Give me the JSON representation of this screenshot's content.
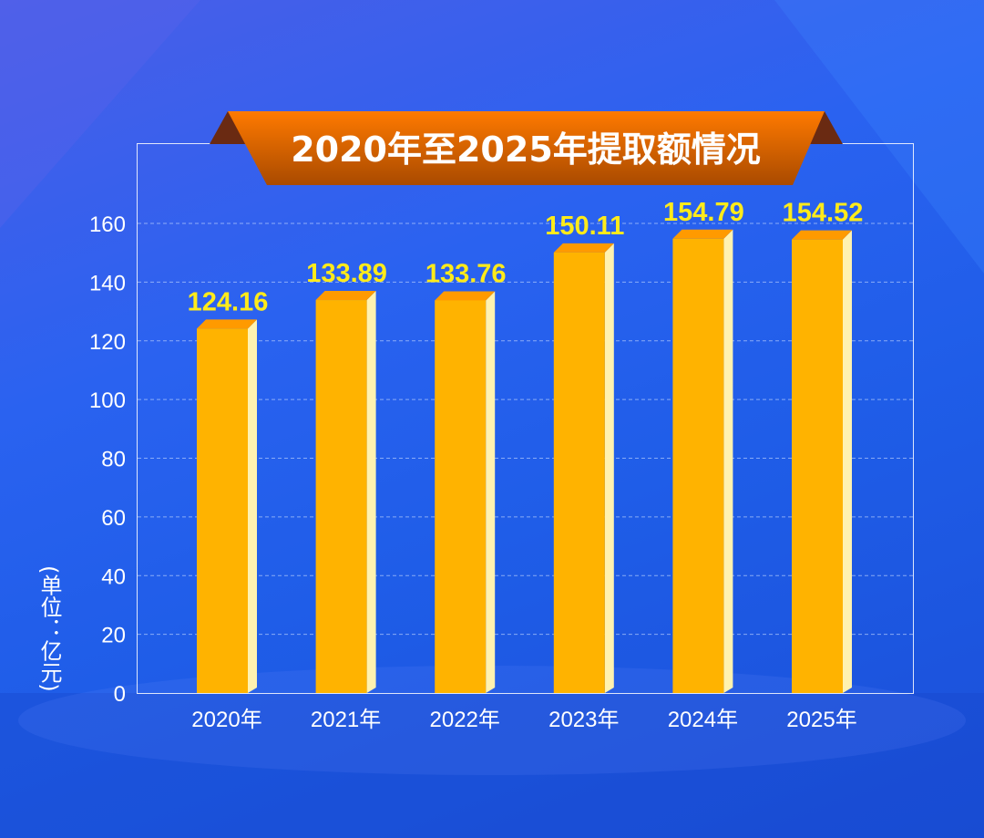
{
  "chart_data": {
    "type": "bar",
    "title": "2020年至2025年提取额情况",
    "ylabel": "(单位：亿元)",
    "xlabel": "",
    "categories": [
      "2020年",
      "2021年",
      "2022年",
      "2023年",
      "2024年",
      "2025年"
    ],
    "values": [
      124.16,
      133.89,
      133.76,
      150.11,
      154.79,
      154.52
    ],
    "value_labels": [
      "124.16",
      "133.89",
      "133.76",
      "150.11",
      "154.79",
      "154.52"
    ],
    "ylim": [
      0,
      170
    ],
    "yticks": [
      0,
      20,
      40,
      60,
      80,
      100,
      120,
      140,
      160
    ],
    "grid": true,
    "colors": {
      "bar_front": "#ffb300",
      "bar_top": "#ff9a00",
      "bar_side": "#fff2b0",
      "value_label": "#ffeb1a",
      "title_banner": "#f07a00"
    }
  }
}
